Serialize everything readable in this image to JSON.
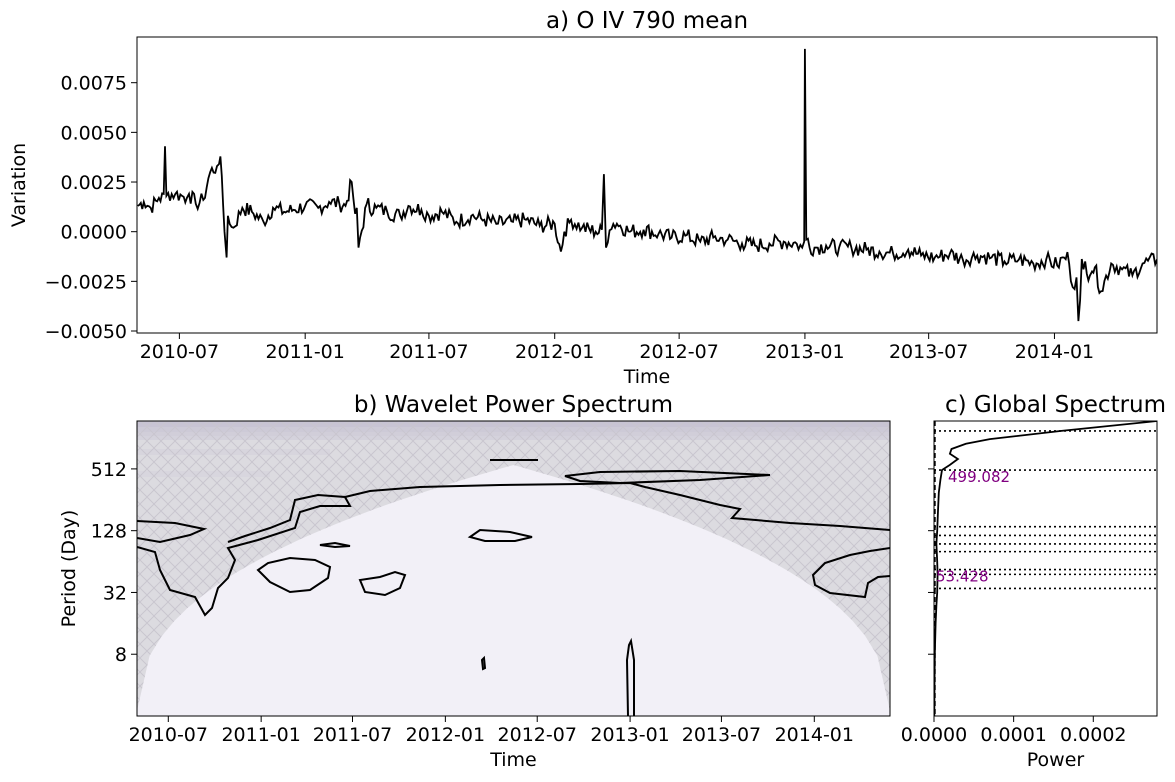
{
  "chart_data": [
    {
      "type": "line",
      "title": "a) O IV 790 mean",
      "xlabel": "Time",
      "ylabel": "Variation",
      "xlim": [
        "2010-04-30",
        "2014-05-31"
      ],
      "ylim": [
        -0.0051,
        0.0098
      ],
      "x_ticks": [
        "2010-07",
        "2011-01",
        "2011-07",
        "2012-01",
        "2012-07",
        "2013-01",
        "2013-07",
        "2014-01"
      ],
      "y_ticks": [
        "−0.0050",
        "−0.0025",
        "0.0000",
        "0.0025",
        "0.0050",
        "0.0075"
      ],
      "y_tick_values": [
        -0.005,
        -0.0025,
        0.0,
        0.0025,
        0.005,
        0.0075
      ],
      "color": "#000000",
      "series": [
        {
          "x": [
            "2010-05-01",
            "2010-05-10",
            "2010-05-20",
            "2010-06-01",
            "2010-06-08",
            "2010-06-10",
            "2010-06-12",
            "2010-06-25",
            "2010-07-05",
            "2010-07-12",
            "2010-07-15",
            "2010-07-25",
            "2010-08-05",
            "2010-08-15",
            "2010-08-25",
            "2010-08-28",
            "2010-09-01",
            "2010-09-05",
            "2010-09-08",
            "2010-09-10",
            "2010-09-18",
            "2010-10-01",
            "2010-10-15",
            "2010-11-01",
            "2010-11-15",
            "2010-12-01",
            "2010-12-15",
            "2011-01-01",
            "2011-01-20",
            "2011-02-05",
            "2011-02-20",
            "2011-03-01",
            "2011-03-10",
            "2011-03-15",
            "2011-03-20",
            "2011-04-01",
            "2011-04-15",
            "2011-05-01",
            "2011-05-20",
            "2011-06-01",
            "2011-06-20",
            "2011-07-01",
            "2011-07-20",
            "2011-08-10",
            "2011-09-01",
            "2011-09-20",
            "2011-10-10",
            "2011-11-01",
            "2011-11-20",
            "2011-12-10",
            "2012-01-01",
            "2012-01-10",
            "2012-01-15",
            "2012-01-25",
            "2012-02-10",
            "2012-03-01",
            "2012-03-10",
            "2012-03-13",
            "2012-03-16",
            "2012-04-01",
            "2012-04-20",
            "2012-05-10",
            "2012-06-01",
            "2012-06-20",
            "2012-07-10",
            "2012-08-01",
            "2012-08-20",
            "2012-09-10",
            "2012-10-01",
            "2012-10-20",
            "2012-11-10",
            "2012-12-01",
            "2012-12-20",
            "2012-12-28",
            "2012-12-31",
            "2013-01-01",
            "2013-01-03",
            "2013-01-15",
            "2013-02-01",
            "2013-02-20",
            "2013-03-10",
            "2013-04-01",
            "2013-04-20",
            "2013-05-10",
            "2013-06-01",
            "2013-06-20",
            "2013-07-10",
            "2013-08-01",
            "2013-08-20",
            "2013-09-10",
            "2013-10-01",
            "2013-10-20",
            "2013-11-10",
            "2013-12-01",
            "2013-12-20",
            "2014-01-05",
            "2014-01-15",
            "2014-01-25",
            "2014-02-05",
            "2014-02-15",
            "2014-02-22",
            "2014-02-25",
            "2014-03-01",
            "2014-03-10",
            "2014-03-25",
            "2014-04-10",
            "2014-04-25",
            "2014-05-10",
            "2014-05-31"
          ],
          "values": [
            0.0013,
            0.0015,
            0.0012,
            0.0017,
            0.0019,
            0.0043,
            0.0018,
            0.0019,
            0.0018,
            0.0017,
            0.0019,
            0.0014,
            0.0016,
            0.003,
            0.0033,
            0.0034,
            0.0028,
            0.0,
            -0.0013,
            0.0008,
            0.0002,
            0.0012,
            0.001,
            0.0005,
            0.0012,
            0.001,
            0.0011,
            0.0013,
            0.0012,
            0.0015,
            0.0014,
            0.0013,
            0.0025,
            0.0009,
            -0.0008,
            0.0014,
            0.0012,
            0.001,
            0.0008,
            0.0013,
            0.0011,
            0.0008,
            0.001,
            0.0005,
            0.0008,
            0.0006,
            0.0004,
            0.0005,
            0.0006,
            0.0003,
            0.0004,
            -0.001,
            0.0,
            0.0006,
            0.0002,
            0.0,
            0.0001,
            0.0029,
            -0.0008,
            0.0004,
            0.0,
            0.0001,
            -0.0001,
            -0.0003,
            -0.0002,
            -0.0005,
            -0.0003,
            -0.0004,
            -0.0006,
            -0.0007,
            -0.0006,
            -0.0005,
            -0.0006,
            -0.0008,
            -0.0005,
            0.0092,
            -0.0004,
            -0.0008,
            -0.0007,
            -0.0008,
            -0.0008,
            -0.0009,
            -0.001,
            -0.0011,
            -0.0009,
            -0.0012,
            -0.0013,
            -0.0011,
            -0.0014,
            -0.0012,
            -0.0013,
            -0.0015,
            -0.0014,
            -0.0016,
            -0.0014,
            -0.0017,
            -0.0013,
            -0.0025,
            -0.0045,
            -0.0015,
            -0.0022,
            -0.002,
            -0.0018,
            -0.003,
            -0.0016,
            -0.0019,
            -0.0022,
            -0.0016,
            -0.0014
          ]
        }
      ]
    },
    {
      "type": "heatmap",
      "title": "b) Wavelet Power Spectrum",
      "xlabel": "Time",
      "ylabel": "Period (Day)",
      "y_scale": "log2",
      "xlim": [
        "2010-04-30",
        "2014-05-31"
      ],
      "ylim": [
        2,
        1500
      ],
      "x_ticks": [
        "2010-07",
        "2011-01",
        "2011-07",
        "2012-01",
        "2012-07",
        "2013-01",
        "2013-07",
        "2014-01"
      ],
      "y_ticks": [
        "8",
        "32",
        "128",
        "512"
      ],
      "y_tick_values": [
        8,
        32,
        128,
        512
      ],
      "colormap": "Purples",
      "cone_of_influence": "hatched, outside shown in grey",
      "significance_contours": "black"
    },
    {
      "type": "line",
      "title": "c) Global Spectrum",
      "xlabel": "Power",
      "y_scale": "log2",
      "xlim": [
        0,
        0.00028
      ],
      "ylim": [
        2,
        1500
      ],
      "x_ticks": [
        "0.0000",
        "0.0001",
        "0.0002"
      ],
      "x_tick_values": [
        0,
        0.0001,
        0.0002
      ],
      "series": [
        {
          "period": [
            2,
            4,
            8,
            16,
            24,
            32,
            48,
            64,
            96,
            128,
            200,
            300,
            400,
            499,
            560,
            640,
            720,
            800,
            900,
            1000,
            1200,
            1500
          ],
          "power": [
            4e-07,
            6e-07,
            1e-06,
            2e-06,
            3e-06,
            4e-06,
            4.5e-06,
            4e-06,
            3e-06,
            4e-06,
            5e-06,
            6e-06,
            8e-06,
            1e-05,
            2e-05,
            3e-05,
            2e-05,
            2.2e-05,
            4e-05,
            7e-05,
            0.00016,
            0.00028
          ]
        }
      ],
      "significance_line": "dashed, near zero",
      "period_lines": [
        1200,
        499.082,
        140,
        115,
        95,
        80,
        53.428,
        48,
        35
      ],
      "annotations": [
        "499.082",
        "53.428"
      ],
      "annotation_color": "#800080"
    }
  ]
}
